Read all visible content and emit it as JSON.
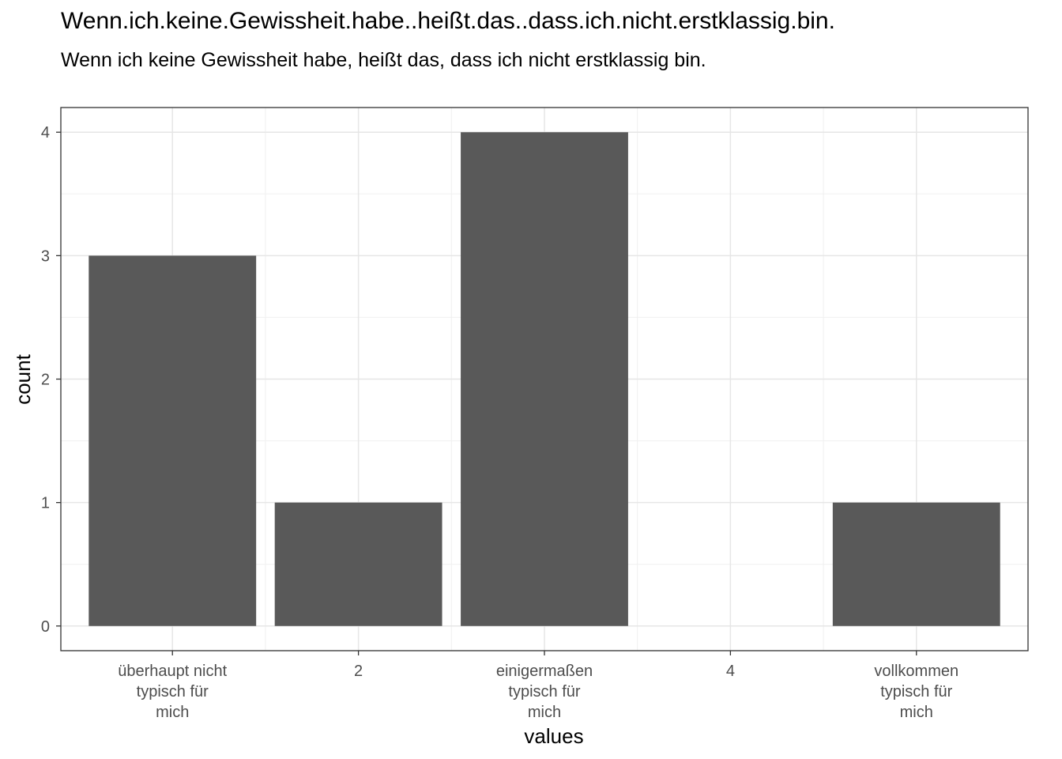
{
  "title": "Wenn.ich.keine.Gewissheit.habe..heißt.das..dass.ich.nicht.erstklassig.bin.",
  "subtitle": "Wenn ich keine Gewissheit habe, heißt das, dass ich nicht erstklassig bin.",
  "chart_data": {
    "type": "bar",
    "categories": [
      [
        "überhaupt nicht",
        "typisch für",
        "mich"
      ],
      [
        "2"
      ],
      [
        "einigermaßen",
        "typisch für",
        "mich"
      ],
      [
        "4"
      ],
      [
        "vollkommen",
        "typisch für",
        "mich"
      ]
    ],
    "values": [
      3,
      1,
      4,
      0,
      1
    ],
    "xlabel": "values",
    "ylabel": "count",
    "ylim": [
      -0.2,
      4.2
    ],
    "yticks": [
      "0",
      "1",
      "2",
      "3",
      "4"
    ],
    "grid": true,
    "bar_color": "#595959"
  }
}
